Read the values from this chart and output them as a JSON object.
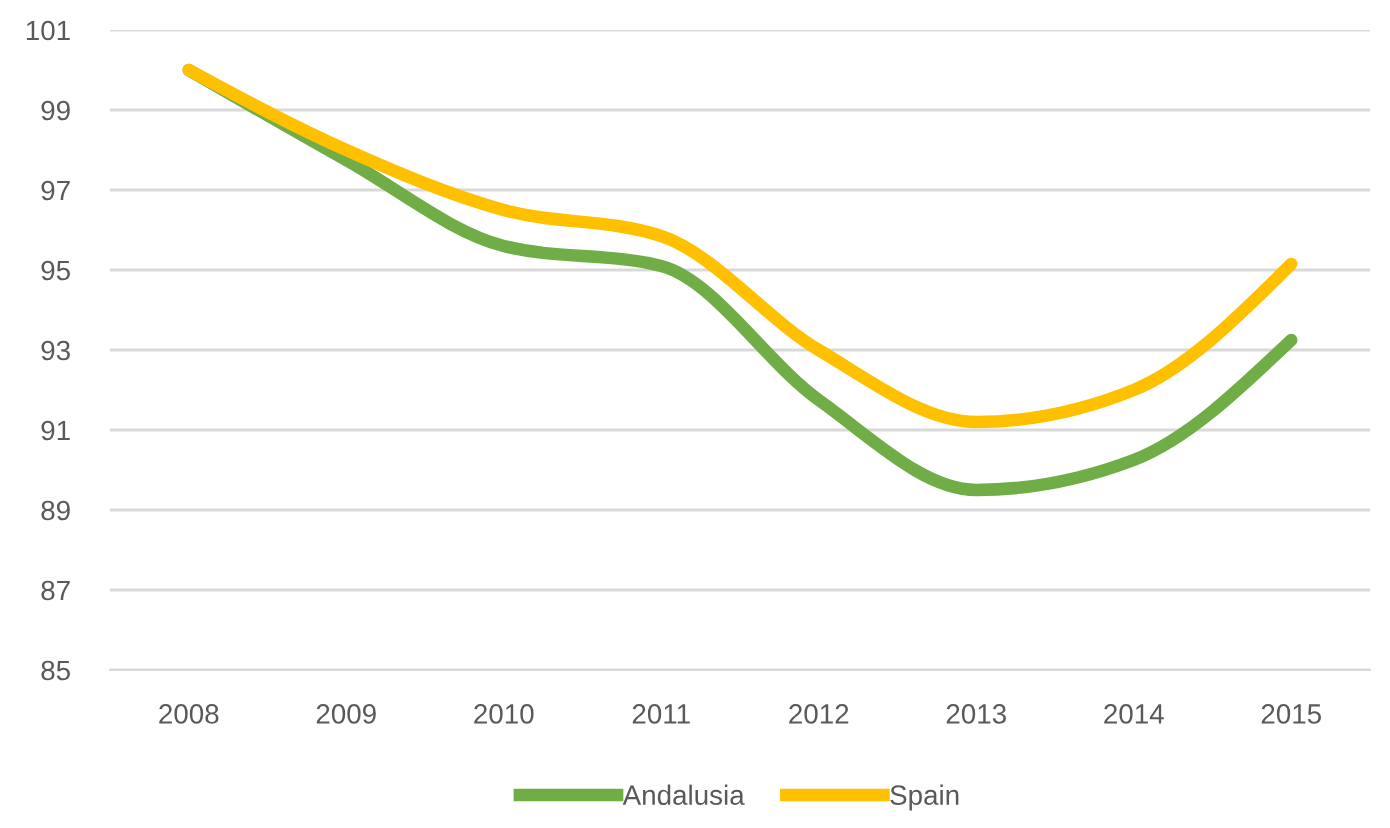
{
  "chart_data": {
    "type": "line",
    "categories": [
      "2008",
      "2009",
      "2010",
      "2011",
      "2012",
      "2013",
      "2014",
      "2015"
    ],
    "series": [
      {
        "name": "Andalusia",
        "color": "#70ad47",
        "values": [
          100,
          97.75,
          95.6,
          95.1,
          91.75,
          89.5,
          90.25,
          93.25
        ]
      },
      {
        "name": "Spain",
        "color": "#ffc000",
        "values": [
          100,
          98,
          96.5,
          95.85,
          93,
          91.2,
          92,
          95.15
        ]
      }
    ],
    "ylim": [
      85,
      101
    ],
    "yticks": [
      85,
      87,
      89,
      91,
      93,
      95,
      97,
      99,
      101
    ],
    "grid": "y",
    "legend": "bottom",
    "marker": "none",
    "line_style": "solid"
  }
}
